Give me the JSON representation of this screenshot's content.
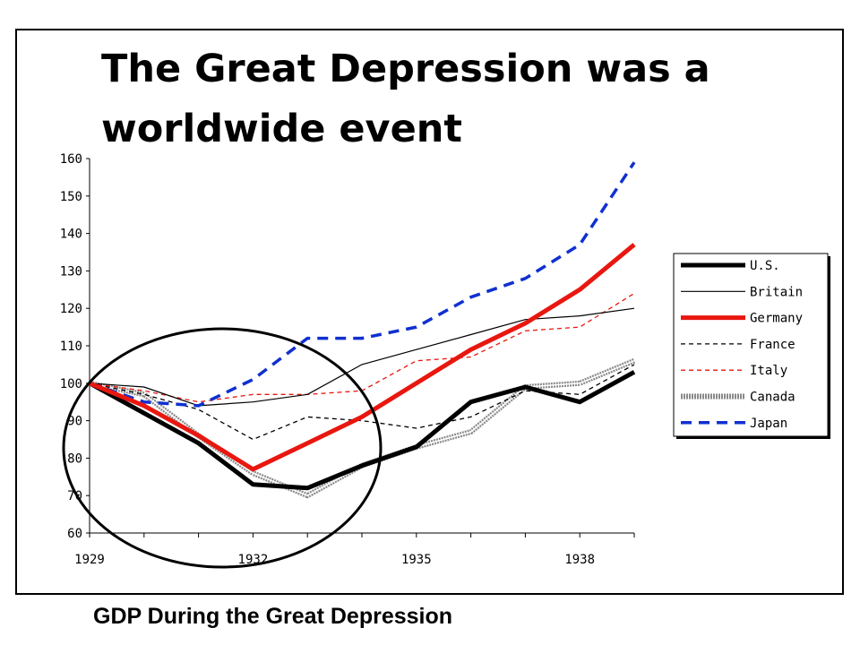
{
  "slide": {
    "title": "The Great Depression was a worldwide event",
    "caption": "GDP During the Great Depression"
  },
  "chart_data": {
    "type": "line",
    "title": "",
    "xlabel": "",
    "ylabel": "",
    "x": [
      1929,
      1930,
      1931,
      1932,
      1933,
      1934,
      1935,
      1936,
      1937,
      1938,
      1939
    ],
    "x_ticks": [
      "1929",
      "1932",
      "1935",
      "1938"
    ],
    "y_ticks": [
      "60",
      "70",
      "80",
      "90",
      "100",
      "110",
      "120",
      "130",
      "140",
      "150",
      "160"
    ],
    "xlim": [
      1929,
      1939
    ],
    "ylim": [
      60,
      160
    ],
    "grid": false,
    "legend_position": "right",
    "series": [
      {
        "name": "U.S.",
        "color": "#000000",
        "style": "thick",
        "values": [
          100,
          92,
          84,
          73,
          72,
          78,
          83,
          95,
          99,
          95,
          103
        ]
      },
      {
        "name": "Britain",
        "color": "#000000",
        "style": "thin",
        "values": [
          100,
          99,
          94,
          95,
          97,
          105,
          109,
          113,
          117,
          118,
          120
        ]
      },
      {
        "name": "Germany",
        "color": "#e8170f",
        "style": "thick",
        "values": [
          100,
          94,
          86,
          77,
          84,
          91,
          100,
          109,
          116,
          125,
          137
        ]
      },
      {
        "name": "France",
        "color": "#000000",
        "style": "dashed",
        "values": [
          100,
          97,
          93,
          85,
          91,
          90,
          88,
          91,
          98,
          97,
          105
        ]
      },
      {
        "name": "Italy",
        "color": "#e8170f",
        "style": "dashed",
        "values": [
          100,
          98,
          95,
          97,
          97,
          98,
          106,
          107,
          114,
          115,
          124
        ]
      },
      {
        "name": "Canada",
        "color": "#8a8a8a",
        "style": "hatched",
        "values": [
          100,
          97,
          86,
          76,
          70,
          78,
          83,
          87,
          99,
          100,
          106
        ]
      },
      {
        "name": "Japan",
        "color": "#1030d0",
        "style": "bigdash",
        "values": [
          100,
          95,
          94,
          101,
          112,
          112,
          115,
          123,
          128,
          137,
          159
        ]
      }
    ],
    "annotation": "circle highlighting 1929-1933 decline"
  }
}
